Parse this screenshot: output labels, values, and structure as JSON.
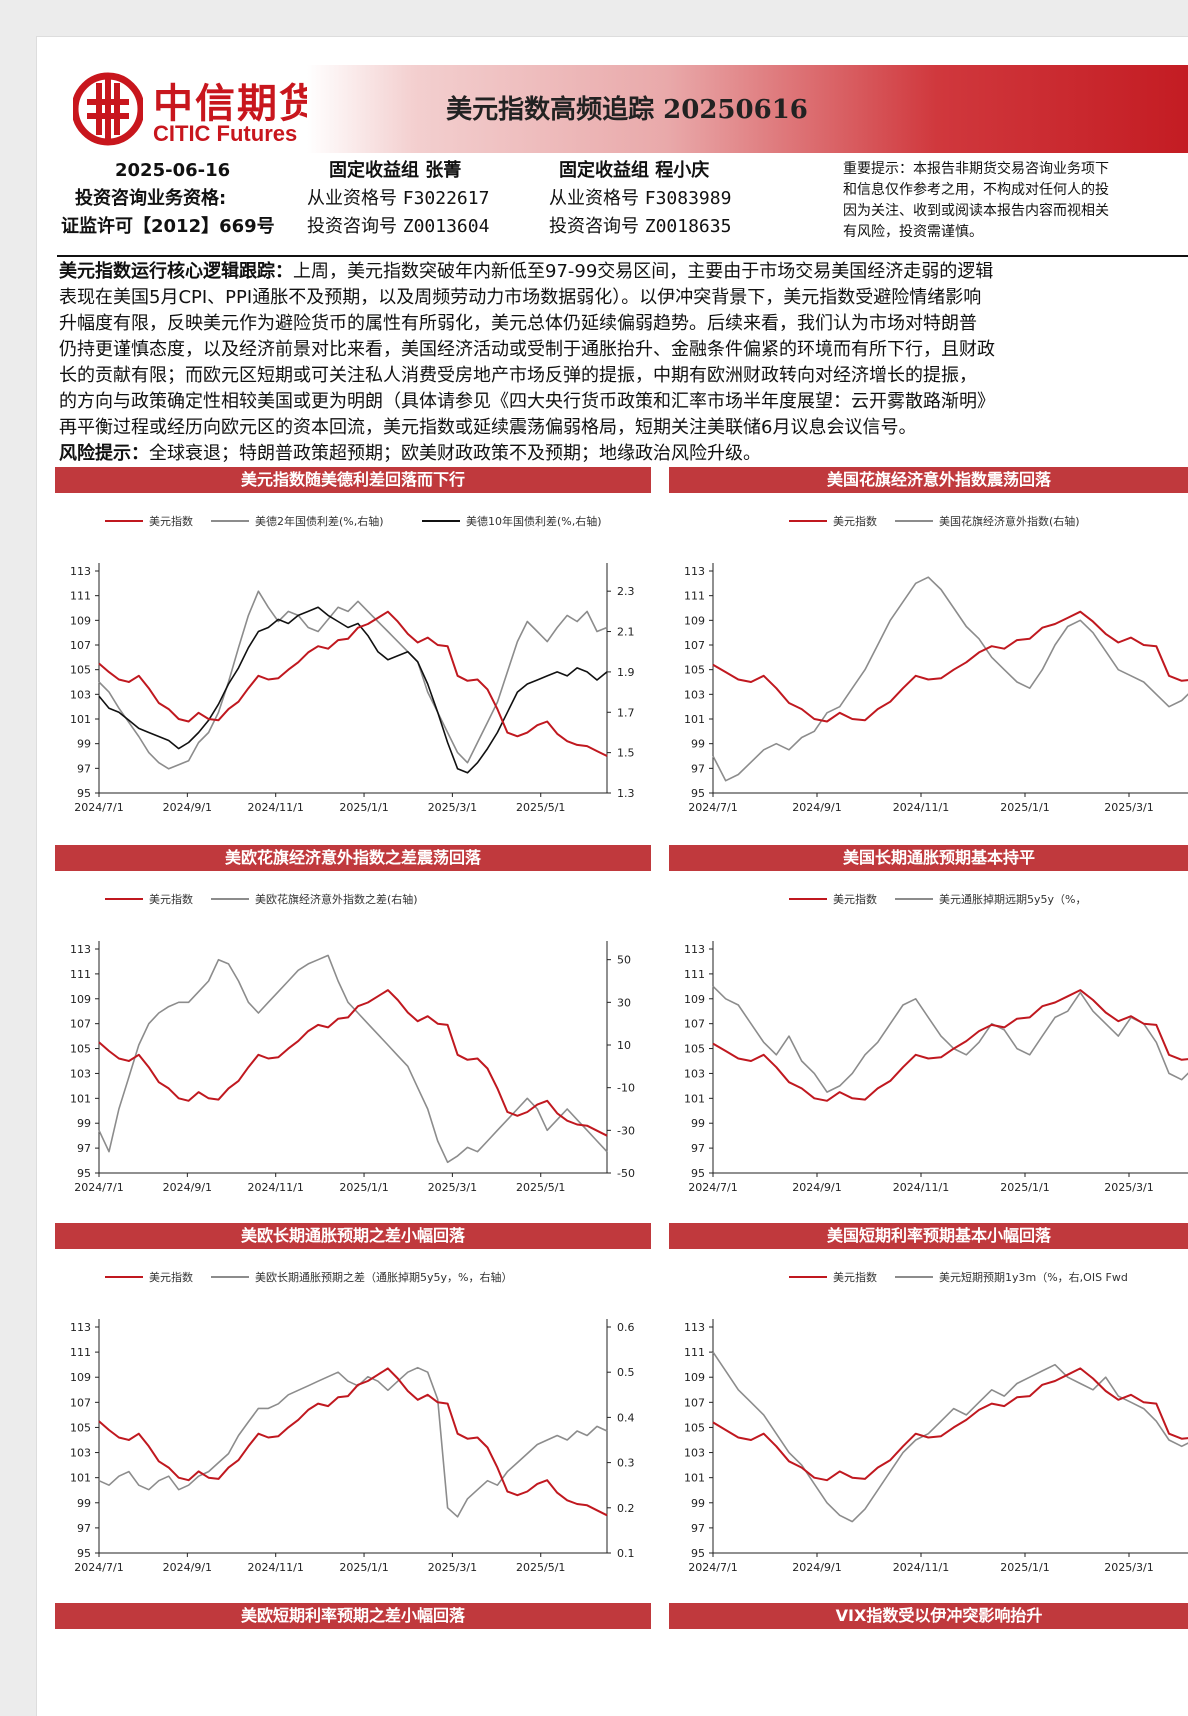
{
  "header": {
    "logo_cn": "中信期货",
    "logo_en": "CITIC Futures",
    "title": "美元指数高频追踪 20250616"
  },
  "meta": {
    "date": "2025-06-16",
    "qual_label": "投资咨询业务资格:",
    "license": "证监许可【2012】669号",
    "analyst1": {
      "group": "固定收益组 张菁",
      "cert_label": "从业资格号",
      "cert": "F3022617",
      "consult_label": "投资咨询号",
      "consult": "Z0013604"
    },
    "analyst2": {
      "group": "固定收益组 程小庆",
      "cert_label": "从业资格号",
      "cert": "F3083989",
      "consult_label": "投资咨询号",
      "consult": "Z0018635"
    },
    "notice": [
      "重要提示：本报告非期货交易咨询业务项下",
      "和信息仅作参考之用，不构成对任何人的投",
      "因为关注、收到或阅读本报告内容而视相关",
      "有风险，投资需谨慎。"
    ]
  },
  "summary": {
    "lead": "美元指数运行核心逻辑跟踪：",
    "lines": [
      "上周，美元指数突破年内新低至97-99交易区间，主要由于市场交易美国经济走弱的逻辑",
      "表现在美国5月CPI、PPI通胀不及预期，以及周频劳动力市场数据弱化）。以伊冲突背景下，美元指数受避险情绪影响",
      "升幅度有限，反映美元作为避险货币的属性有所弱化，美元总体仍延续偏弱趋势。后续来看，我们认为市场对特朗普",
      "仍持更谨慎态度，以及经济前景对比来看，美国经济活动或受制于通胀抬升、金融条件偏紧的环境而有所下行，且财政",
      "长的贡献有限；而欧元区短期或可关注私人消费受房地产市场反弹的提振，中期有欧洲财政转向对经济增长的提振，",
      "的方向与政策确定性相较美国或更为明朗（具体请参见《四大央行货币政策和汇率市场半年度展望：云开雾散路渐明》",
      "再平衡过程或经历向欧元区的资本回流，美元指数或延续震荡偏弱格局，短期关注美联储6月议息会议信号。"
    ],
    "risk_lead": "风险提示：",
    "risk": "全球衰退；特朗普政策超预期；欧美财政政策不及预期；地缘政治风险升级。"
  },
  "colors": {
    "red": "#c0181f",
    "grey": "#8c8c8c",
    "black": "#111111",
    "head": "#c0393d"
  },
  "charts": [
    {
      "heading": "美元指数随美德利差回落而下行",
      "chart_data": {
        "type": "line",
        "x_ticks": [
          "2024/7/1",
          "2024/9/1",
          "2024/11/1",
          "2025/1/1",
          "2025/3/1",
          "2025/5/1"
        ],
        "ylim": [
          95,
          113
        ],
        "y_ticks": [
          "113",
          "111",
          "109",
          "107",
          "105",
          "103",
          "101",
          "99",
          "97",
          "95"
        ],
        "y2lim": [
          1.3,
          2.4
        ],
        "y2_ticks": [
          "2.3",
          "2.1",
          "1.9",
          "1.7",
          "1.5",
          "1.3"
        ],
        "series": [
          {
            "name": "美元指数",
            "color": "#c0181f",
            "axis": "left",
            "values": [
              105.5,
              104.8,
              104.2,
              104.0,
              104.5,
              103.5,
              102.3,
              101.8,
              101.0,
              100.8,
              101.5,
              101.0,
              100.9,
              101.8,
              102.4,
              103.5,
              104.5,
              104.2,
              104.3,
              105.0,
              105.6,
              106.4,
              106.9,
              106.7,
              107.4,
              107.5,
              108.4,
              108.7,
              109.2,
              109.7,
              108.9,
              107.9,
              107.2,
              107.6,
              107.0,
              106.9,
              104.5,
              104.1,
              104.2,
              103.4,
              101.8,
              99.9,
              99.6,
              99.9,
              100.5,
              100.8,
              99.8,
              99.2,
              98.9,
              98.8,
              98.4,
              98.0
            ]
          },
          {
            "name": "美德2年国债利差(%,右轴)",
            "color": "#8c8c8c",
            "axis": "right",
            "values": [
              1.85,
              1.8,
              1.72,
              1.65,
              1.58,
              1.5,
              1.45,
              1.42,
              1.44,
              1.46,
              1.55,
              1.6,
              1.7,
              1.85,
              2.02,
              2.18,
              2.3,
              2.22,
              2.15,
              2.2,
              2.18,
              2.12,
              2.1,
              2.16,
              2.22,
              2.2,
              2.25,
              2.2,
              2.15,
              2.1,
              2.05,
              2.0,
              1.95,
              1.8,
              1.7,
              1.6,
              1.5,
              1.45,
              1.55,
              1.65,
              1.75,
              1.9,
              2.05,
              2.15,
              2.1,
              2.05,
              2.12,
              2.18,
              2.15,
              2.2,
              2.1,
              2.12
            ]
          },
          {
            "name": "美德10年国债利差(%,右轴)",
            "color": "#111111",
            "axis": "right",
            "values": [
              1.78,
              1.72,
              1.7,
              1.66,
              1.62,
              1.6,
              1.58,
              1.56,
              1.52,
              1.55,
              1.6,
              1.66,
              1.74,
              1.84,
              1.92,
              2.02,
              2.1,
              2.12,
              2.16,
              2.14,
              2.18,
              2.2,
              2.22,
              2.18,
              2.15,
              2.12,
              2.14,
              2.08,
              2.0,
              1.96,
              1.98,
              2.0,
              1.95,
              1.84,
              1.7,
              1.55,
              1.42,
              1.4,
              1.45,
              1.52,
              1.6,
              1.7,
              1.8,
              1.84,
              1.86,
              1.88,
              1.9,
              1.88,
              1.92,
              1.9,
              1.86,
              1.9
            ]
          }
        ]
      }
    },
    {
      "heading": "美国花旗经济意外指数震荡回落",
      "chart_data": {
        "type": "line",
        "x_ticks": [
          "2024/7/1",
          "2024/9/1",
          "2024/11/1",
          "2025/1/1",
          "2025/3/1"
        ],
        "ylim": [
          95,
          113
        ],
        "y_ticks": [
          "113",
          "111",
          "109",
          "107",
          "105",
          "103",
          "101",
          "99",
          "97",
          "95"
        ],
        "series": [
          {
            "name": "美元指数",
            "color": "#c0181f",
            "axis": "left",
            "values": [
              105.4,
              104.8,
              104.2,
              104.0,
              104.5,
              103.5,
              102.3,
              101.8,
              101.0,
              100.8,
              101.5,
              101.0,
              100.9,
              101.8,
              102.4,
              103.5,
              104.5,
              104.2,
              104.3,
              105.0,
              105.6,
              106.4,
              106.9,
              106.7,
              107.4,
              107.5,
              108.4,
              108.7,
              109.2,
              109.7,
              108.9,
              107.9,
              107.2,
              107.6,
              107.0,
              106.9,
              104.5,
              104.1,
              104.2,
              103.4
            ]
          },
          {
            "name": "美国花旗经济意外指数(右轴)",
            "color": "#8c8c8c",
            "axis": "left",
            "values": [
              98.0,
              96.0,
              96.5,
              97.5,
              98.5,
              99.0,
              98.5,
              99.5,
              100.0,
              101.5,
              102.0,
              103.5,
              105.0,
              107.0,
              109.0,
              110.5,
              112.0,
              112.5,
              111.5,
              110.0,
              108.5,
              107.5,
              106.0,
              105.0,
              104.0,
              103.5,
              105.0,
              107.0,
              108.5,
              109.0,
              108.0,
              106.5,
              105.0,
              104.5,
              104.0,
              103.0,
              102.0,
              102.5,
              103.5,
              103.0
            ]
          }
        ]
      }
    },
    {
      "heading": "美欧花旗经济意外指数之差震荡回落",
      "chart_data": {
        "type": "line",
        "x_ticks": [
          "2024/7/1",
          "2024/9/1",
          "2024/11/1",
          "2025/1/1",
          "2025/3/1",
          "2025/5/1"
        ],
        "ylim": [
          95,
          113
        ],
        "y_ticks": [
          "113",
          "111",
          "109",
          "107",
          "105",
          "103",
          "101",
          "99",
          "97",
          "95"
        ],
        "y2lim": [
          -50,
          55
        ],
        "y2_ticks": [
          "50",
          "30",
          "10",
          "-10",
          "-30",
          "-50"
        ],
        "series": [
          {
            "name": "美元指数",
            "color": "#c0181f",
            "axis": "left",
            "values": [
              105.5,
              104.8,
              104.2,
              104.0,
              104.5,
              103.5,
              102.3,
              101.8,
              101.0,
              100.8,
              101.5,
              101.0,
              100.9,
              101.8,
              102.4,
              103.5,
              104.5,
              104.2,
              104.3,
              105.0,
              105.6,
              106.4,
              106.9,
              106.7,
              107.4,
              107.5,
              108.4,
              108.7,
              109.2,
              109.7,
              108.9,
              107.9,
              107.2,
              107.6,
              107.0,
              106.9,
              104.5,
              104.1,
              104.2,
              103.4,
              101.8,
              99.9,
              99.6,
              99.9,
              100.5,
              100.8,
              99.8,
              99.2,
              98.9,
              98.8,
              98.4,
              98.0
            ]
          },
          {
            "name": "美欧花旗经济意外指数之差(右轴)",
            "color": "#8c8c8c",
            "axis": "right",
            "values": [
              -30,
              -40,
              -20,
              -5,
              10,
              20,
              25,
              28,
              30,
              30,
              35,
              40,
              50,
              48,
              40,
              30,
              25,
              30,
              35,
              40,
              45,
              48,
              50,
              52,
              40,
              30,
              25,
              20,
              15,
              10,
              5,
              0,
              -10,
              -20,
              -35,
              -45,
              -42,
              -38,
              -40,
              -35,
              -30,
              -25,
              -20,
              -15,
              -20,
              -30,
              -25,
              -20,
              -25,
              -30,
              -35,
              -40
            ]
          }
        ]
      }
    },
    {
      "heading": "美国长期通胀预期基本持平",
      "chart_data": {
        "type": "line",
        "x_ticks": [
          "2024/7/1",
          "2024/9/1",
          "2024/11/1",
          "2025/1/1",
          "2025/3/1"
        ],
        "ylim": [
          95,
          113
        ],
        "y_ticks": [
          "113",
          "111",
          "109",
          "107",
          "105",
          "103",
          "101",
          "99",
          "97",
          "95"
        ],
        "series": [
          {
            "name": "美元指数",
            "color": "#c0181f",
            "axis": "left",
            "values": [
              105.4,
              104.8,
              104.2,
              104.0,
              104.5,
              103.5,
              102.3,
              101.8,
              101.0,
              100.8,
              101.5,
              101.0,
              100.9,
              101.8,
              102.4,
              103.5,
              104.5,
              104.2,
              104.3,
              105.0,
              105.6,
              106.4,
              106.9,
              106.7,
              107.4,
              107.5,
              108.4,
              108.7,
              109.2,
              109.7,
              108.9,
              107.9,
              107.2,
              107.6,
              107.0,
              106.9,
              104.5,
              104.1,
              104.2,
              103.4
            ]
          },
          {
            "name": "美元通胀掉期远期5y5y（%，",
            "color": "#8c8c8c",
            "axis": "left",
            "values": [
              110.0,
              109.0,
              108.5,
              107.0,
              105.5,
              104.5,
              106.0,
              104.0,
              103.0,
              101.5,
              102.0,
              103.0,
              104.5,
              105.5,
              107.0,
              108.5,
              109.0,
              107.5,
              106.0,
              105.0,
              104.5,
              105.5,
              107.0,
              106.5,
              105.0,
              104.5,
              106.0,
              107.5,
              108.0,
              109.5,
              108.0,
              107.0,
              106.0,
              107.5,
              107.0,
              105.5,
              103.0,
              102.5,
              103.5,
              104.0
            ]
          }
        ]
      }
    },
    {
      "heading": "美欧长期通胀预期之差小幅回落",
      "chart_data": {
        "type": "line",
        "x_ticks": [
          "2024/7/1",
          "2024/9/1",
          "2024/11/1",
          "2025/1/1",
          "2025/3/1",
          "2025/5/1"
        ],
        "ylim": [
          95,
          113
        ],
        "y_ticks": [
          "113",
          "111",
          "109",
          "107",
          "105",
          "103",
          "101",
          "99",
          "97",
          "95"
        ],
        "y2lim": [
          0.1,
          0.6
        ],
        "y2_ticks": [
          "0.6",
          "0.5",
          "0.4",
          "0.3",
          "0.2",
          "0.1"
        ],
        "series": [
          {
            "name": "美元指数",
            "color": "#c0181f",
            "axis": "left",
            "values": [
              105.5,
              104.8,
              104.2,
              104.0,
              104.5,
              103.5,
              102.3,
              101.8,
              101.0,
              100.8,
              101.5,
              101.0,
              100.9,
              101.8,
              102.4,
              103.5,
              104.5,
              104.2,
              104.3,
              105.0,
              105.6,
              106.4,
              106.9,
              106.7,
              107.4,
              107.5,
              108.4,
              108.7,
              109.2,
              109.7,
              108.9,
              107.9,
              107.2,
              107.6,
              107.0,
              106.9,
              104.5,
              104.1,
              104.2,
              103.4,
              101.8,
              99.9,
              99.6,
              99.9,
              100.5,
              100.8,
              99.8,
              99.2,
              98.9,
              98.8,
              98.4,
              98.0
            ]
          },
          {
            "name": "美欧长期通胀预期之差（通胀掉期5y5y，%，右轴）",
            "color": "#8c8c8c",
            "axis": "right",
            "values": [
              0.26,
              0.25,
              0.27,
              0.28,
              0.25,
              0.24,
              0.26,
              0.27,
              0.24,
              0.25,
              0.27,
              0.28,
              0.3,
              0.32,
              0.36,
              0.39,
              0.42,
              0.42,
              0.43,
              0.45,
              0.46,
              0.47,
              0.48,
              0.49,
              0.5,
              0.48,
              0.47,
              0.49,
              0.48,
              0.46,
              0.48,
              0.5,
              0.51,
              0.5,
              0.44,
              0.2,
              0.18,
              0.22,
              0.24,
              0.26,
              0.25,
              0.28,
              0.3,
              0.32,
              0.34,
              0.35,
              0.36,
              0.35,
              0.37,
              0.36,
              0.38,
              0.37
            ]
          }
        ]
      }
    },
    {
      "heading": "美国短期利率预期基本小幅回落",
      "chart_data": {
        "type": "line",
        "x_ticks": [
          "2024/7/1",
          "2024/9/1",
          "2024/11/1",
          "2025/1/1",
          "2025/3/1"
        ],
        "ylim": [
          95,
          113
        ],
        "y_ticks": [
          "113",
          "111",
          "109",
          "107",
          "105",
          "103",
          "101",
          "99",
          "97",
          "95"
        ],
        "series": [
          {
            "name": "美元指数",
            "color": "#c0181f",
            "axis": "left",
            "values": [
              105.4,
              104.8,
              104.2,
              104.0,
              104.5,
              103.5,
              102.3,
              101.8,
              101.0,
              100.8,
              101.5,
              101.0,
              100.9,
              101.8,
              102.4,
              103.5,
              104.5,
              104.2,
              104.3,
              105.0,
              105.6,
              106.4,
              106.9,
              106.7,
              107.4,
              107.5,
              108.4,
              108.7,
              109.2,
              109.7,
              108.9,
              107.9,
              107.2,
              107.6,
              107.0,
              106.9,
              104.5,
              104.1,
              104.2,
              103.4
            ]
          },
          {
            "name": "美元短期预期1y3m（%，右,OIS Fwd",
            "color": "#8c8c8c",
            "axis": "left",
            "values": [
              111.0,
              109.5,
              108.0,
              107.0,
              106.0,
              104.5,
              103.0,
              102.0,
              100.5,
              99.0,
              98.0,
              97.5,
              98.5,
              100.0,
              101.5,
              103.0,
              104.0,
              104.5,
              105.5,
              106.5,
              106.0,
              107.0,
              108.0,
              107.5,
              108.5,
              109.0,
              109.5,
              110.0,
              109.0,
              108.5,
              108.0,
              109.0,
              107.5,
              107.0,
              106.5,
              105.5,
              104.0,
              103.5,
              104.0,
              104.5
            ]
          }
        ]
      }
    }
  ],
  "next_headings": [
    "美欧短期利率预期之差小幅回落",
    "VIX指数受以伊冲突影响抬升"
  ]
}
